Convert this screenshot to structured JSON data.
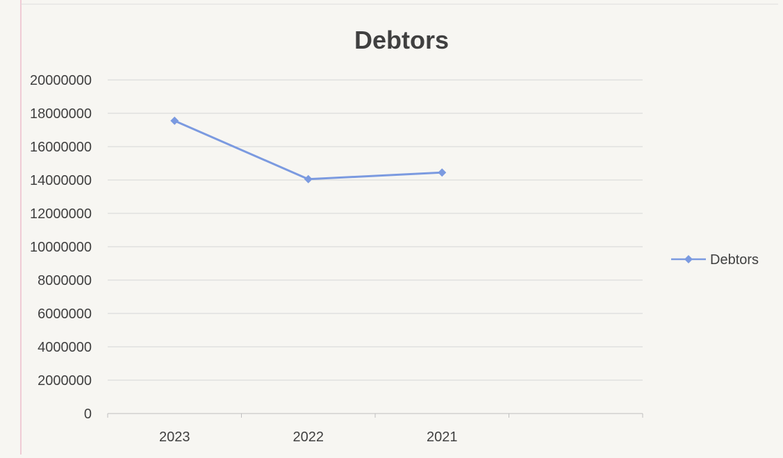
{
  "chart_data": {
    "type": "line",
    "title": "Debtors",
    "categories": [
      "2023",
      "2022",
      "2021"
    ],
    "series": [
      {
        "name": "Debtors",
        "values": [
          17550000,
          14050000,
          14450000
        ],
        "color": "#7b9ae0"
      }
    ],
    "ylim": [
      0,
      20000000
    ],
    "yticks": [
      0,
      2000000,
      4000000,
      6000000,
      8000000,
      10000000,
      12000000,
      14000000,
      16000000,
      18000000,
      20000000
    ],
    "grid": true,
    "legend": "right",
    "xlabel": "",
    "ylabel": ""
  }
}
